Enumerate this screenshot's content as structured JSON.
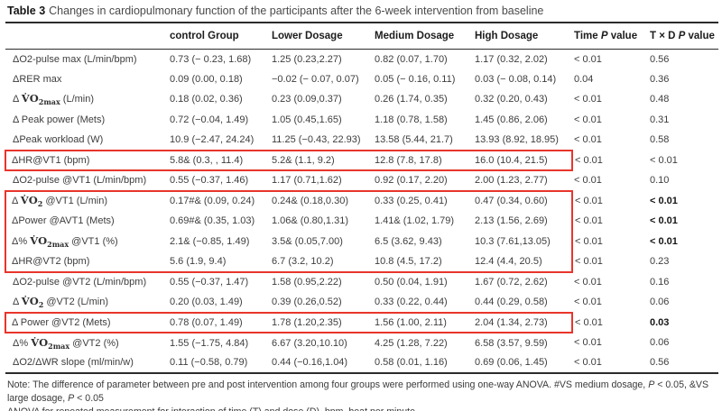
{
  "title": {
    "label": "Table 3",
    "text": "Changes in cardiopulmonary function of the participants after the 6-week intervention from baseline"
  },
  "accent": {
    "highlight_red": "#e8352b",
    "rule_color": "#2b2b2b"
  },
  "table": {
    "columns": [
      [],
      [
        {
          "t": "t",
          "s": "control Group"
        }
      ],
      [
        {
          "t": "t",
          "s": "Lower Dosage"
        }
      ],
      [
        {
          "t": "t",
          "s": "Medium Dosage"
        }
      ],
      [
        {
          "t": "t",
          "s": "High Dosage"
        }
      ],
      [
        {
          "t": "t",
          "s": "Time "
        },
        {
          "t": "i",
          "s": "P"
        },
        {
          "t": "t",
          "s": " value"
        }
      ],
      [
        {
          "t": "t",
          "s": "T × D "
        },
        {
          "t": "i",
          "s": "P"
        },
        {
          "t": "t",
          "s": " value"
        }
      ]
    ],
    "rows": [
      {
        "label": [
          {
            "t": "t",
            "s": "ΔO2-pulse max (L/min/bpm)"
          }
        ],
        "values": [
          "0.73 (− 0.23, 1.68)",
          "1.25 (0.23,2.27)",
          "0.82 (0.07, 1.70)",
          "1.17 (0.32, 2.02)",
          "< 0.01",
          "0.56"
        ],
        "txd_bold": false,
        "hl": null
      },
      {
        "label": [
          {
            "t": "t",
            "s": "ΔRER max"
          }
        ],
        "values": [
          "0.09 (0.00, 0.18)",
          "−0.02 (− 0.07, 0.07)",
          "0.05 (− 0.16, 0.11)",
          "0.03 (− 0.08, 0.14)",
          "0.04",
          "0.36"
        ],
        "txd_bold": false,
        "hl": null
      },
      {
        "label": [
          {
            "t": "t",
            "s": "Δ "
          },
          {
            "t": "m",
            "s": "V̇O"
          },
          {
            "t": "sub",
            "s": "2max"
          },
          {
            "t": "t",
            "s": " (L/min)"
          }
        ],
        "values": [
          "0.18 (0.02, 0.36)",
          "0.23 (0.09,0.37)",
          "0.26 (1.74, 0.35)",
          "0.32 (0.20, 0.43)",
          "< 0.01",
          "0.48"
        ],
        "txd_bold": false,
        "hl": null
      },
      {
        "label": [
          {
            "t": "t",
            "s": "Δ Peak power (Mets)"
          }
        ],
        "values": [
          "0.72 (−0.04, 1.49)",
          "1.05 (0.45,1.65)",
          "1.18 (0.78, 1.58)",
          "1.45 (0.86, 2.06)",
          "< 0.01",
          "0.31"
        ],
        "txd_bold": false,
        "hl": null
      },
      {
        "label": [
          {
            "t": "t",
            "s": "ΔPeak workload (W)"
          }
        ],
        "values": [
          "10.9 (−2.47, 24.24)",
          "11.25 (−0.43, 22.93)",
          "13.58 (5.44, 21.7)",
          "13.93 (8.92, 18.95)",
          "< 0.01",
          "0.58"
        ],
        "txd_bold": false,
        "hl": null
      },
      {
        "label": [
          {
            "t": "t",
            "s": "ΔHR@VT1 (bpm)"
          }
        ],
        "values": [
          "5.8& (0.3, , 11.4)",
          "5.2& (1.1, 9.2)",
          "12.8 (7.8, 17.8)",
          "16.0 (10.4, 21.5)",
          "< 0.01",
          "< 0.01"
        ],
        "txd_bold": false,
        "hl": "single"
      },
      {
        "label": [
          {
            "t": "t",
            "s": "ΔO2-pulse @VT1 (L/min/bpm)"
          }
        ],
        "values": [
          "0.55 (−0.37, 1.46)",
          "1.17 (0.71,1.62)",
          "0.92 (0.17, 2.20)",
          "2.00 (1.23, 2.77)",
          "< 0.01",
          "0.10"
        ],
        "txd_bold": false,
        "hl": null
      },
      {
        "label": [
          {
            "t": "t",
            "s": "Δ "
          },
          {
            "t": "m",
            "s": "V̇O"
          },
          {
            "t": "sub",
            "s": "2"
          },
          {
            "t": "t",
            "s": " @VT1 (L/min)"
          }
        ],
        "values": [
          "0.17#& (0.09, 0.24)",
          "0.24& (0.18,0.30)",
          "0.33 (0.25, 0.41)",
          "0.47 (0.34, 0.60)",
          "< 0.01",
          "< 0.01"
        ],
        "txd_bold": true,
        "hl": "start"
      },
      {
        "label": [
          {
            "t": "t",
            "s": "ΔPower @AVT1 (Mets)"
          }
        ],
        "values": [
          "0.69#& (0.35, 1.03)",
          "1.06& (0.80,1.31)",
          "1.41& (1.02, 1.79)",
          "2.13 (1.56, 2.69)",
          "< 0.01",
          "< 0.01"
        ],
        "txd_bold": true,
        "hl": "mid"
      },
      {
        "label": [
          {
            "t": "t",
            "s": "Δ% "
          },
          {
            "t": "m",
            "s": "V̇O"
          },
          {
            "t": "sub",
            "s": "2max"
          },
          {
            "t": "t",
            "s": " @VT1 (%)"
          }
        ],
        "values": [
          "2.1& (−0.85, 1.49)",
          "3.5& (0.05,7.00)",
          "6.5 (3.62, 9.43)",
          "10.3 (7.61,13.05)",
          "< 0.01",
          "< 0.01"
        ],
        "txd_bold": true,
        "hl": "mid"
      },
      {
        "label": [
          {
            "t": "t",
            "s": "ΔHR@VT2 (bpm)"
          }
        ],
        "values": [
          "5.6 (1.9, 9.4)",
          "6.7 (3.2, 10.2)",
          "10.8 (4.5, 17.2)",
          "12.4 (4.4, 20.5)",
          "< 0.01",
          "0.23"
        ],
        "txd_bold": false,
        "hl": "end"
      },
      {
        "label": [
          {
            "t": "t",
            "s": "ΔO2-pulse @VT2 (L/min/bpm)"
          }
        ],
        "values": [
          "0.55 (−0.37, 1.47)",
          "1.58 (0.95,2.22)",
          "0.50 (0.04, 1.91)",
          "1.67 (0.72, 2.62)",
          "< 0.01",
          "0.16"
        ],
        "txd_bold": false,
        "hl": null
      },
      {
        "label": [
          {
            "t": "t",
            "s": "Δ "
          },
          {
            "t": "m",
            "s": "V̇O"
          },
          {
            "t": "sub",
            "s": "2"
          },
          {
            "t": "t",
            "s": " @VT2 (L/min)"
          }
        ],
        "values": [
          "0.20 (0.03, 1.49)",
          "0.39 (0.26,0.52)",
          "0.33 (0.22, 0.44)",
          "0.44 (0.29, 0.58)",
          "< 0.01",
          "0.06"
        ],
        "txd_bold": false,
        "hl": null
      },
      {
        "label": [
          {
            "t": "t",
            "s": "Δ Power @VT2 (Mets)"
          }
        ],
        "values": [
          "0.78 (0.07, 1.49)",
          "1.78 (1.20,2.35)",
          "1.56 (1.00, 2.11)",
          "2.04 (1.34, 2.73)",
          "< 0.01",
          "0.03"
        ],
        "txd_bold": true,
        "hl": "single"
      },
      {
        "label": [
          {
            "t": "t",
            "s": "Δ% "
          },
          {
            "t": "m",
            "s": "V̇O"
          },
          {
            "t": "sub",
            "s": "2max"
          },
          {
            "t": "t",
            "s": " @VT2 (%)"
          }
        ],
        "values": [
          "1.55 (−1.75, 4.84)",
          "6.67 (3.20,10.10)",
          "4.25 (1.28, 7.22)",
          "6.58 (3.57, 9.59)",
          "< 0.01",
          "0.06"
        ],
        "txd_bold": false,
        "hl": null
      },
      {
        "label": [
          {
            "t": "t",
            "s": "ΔO2/ΔWR slope (ml/min/w)"
          }
        ],
        "values": [
          "0.11 (−0.58, 0.79)",
          "0.44 (−0.16,1.04)",
          "0.58 (0.01, 1.16)",
          "0.69 (0.06, 1.45)",
          "< 0.01",
          "0.56"
        ],
        "txd_bold": false,
        "hl": null
      }
    ]
  },
  "footnotes": [
    [
      {
        "t": "t",
        "s": "Note: The difference of parameter between pre and post intervention among four groups were performed using one-way ANOVA. #VS medium dosage, "
      },
      {
        "t": "i",
        "s": "P"
      },
      {
        "t": "t",
        "s": " < 0.05, &VS large dosage, "
      },
      {
        "t": "i",
        "s": "P"
      },
      {
        "t": "t",
        "s": " < 0.05"
      }
    ],
    [
      {
        "t": "t",
        "s": "ANOVA for repeated measurement for interaction of time (T) and dose (D). bpm, beat per minute"
      }
    ]
  ]
}
